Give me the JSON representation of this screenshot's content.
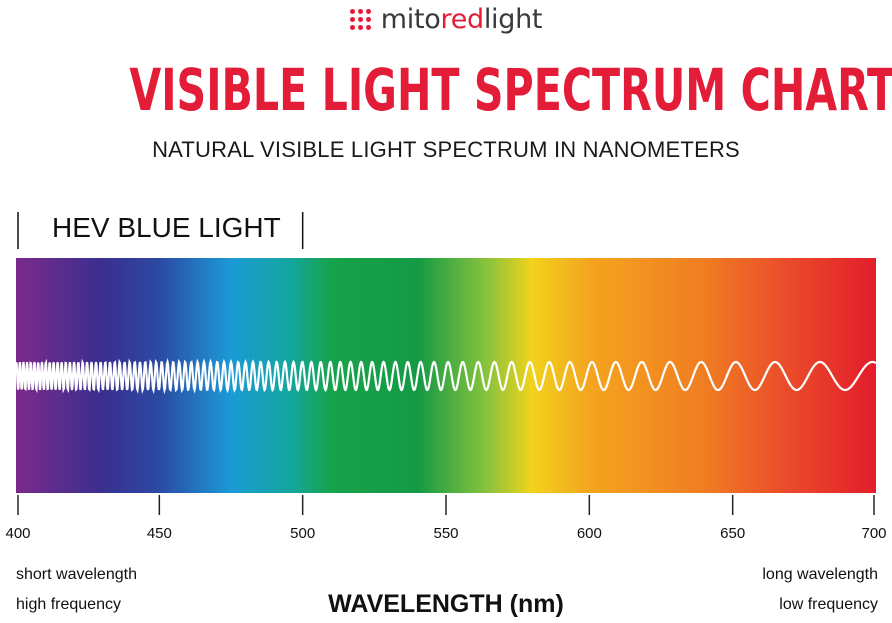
{
  "brand": {
    "name_prefix": "mito",
    "name_accent": "red",
    "name_suffix": "light",
    "accent_color": "#e31d37"
  },
  "header": {
    "title": "VISIBLE LIGHT SPECTRUM CHART",
    "subtitle": "NATURAL VISIBLE LIGHT SPECTRUM IN NANOMETERS"
  },
  "chart_data": {
    "type": "spectrum",
    "xlabel": "WAVELENGTH (nm)",
    "xlim": [
      400,
      700
    ],
    "ticks": [
      400,
      450,
      500,
      550,
      600,
      650,
      700
    ],
    "tick_labels": [
      "400",
      "450",
      "500",
      "550",
      "600",
      "650",
      "700"
    ],
    "region": {
      "label": "HEV BLUE LIGHT",
      "range": [
        400,
        500
      ]
    },
    "color_stops": [
      {
        "nm": 400,
        "color": "#7b2a8c"
      },
      {
        "nm": 430,
        "color": "#3a2f8f"
      },
      {
        "nm": 450,
        "color": "#2b4aa3"
      },
      {
        "nm": 475,
        "color": "#1b9ad6"
      },
      {
        "nm": 495,
        "color": "#14a6a0"
      },
      {
        "nm": 510,
        "color": "#16a34a"
      },
      {
        "nm": 540,
        "color": "#149a45"
      },
      {
        "nm": 565,
        "color": "#8cc43c"
      },
      {
        "nm": 580,
        "color": "#f2d21c"
      },
      {
        "nm": 600,
        "color": "#f4a51e"
      },
      {
        "nm": 640,
        "color": "#f07d22"
      },
      {
        "nm": 670,
        "color": "#ea4a2a"
      },
      {
        "nm": 700,
        "color": "#e31d2b"
      }
    ],
    "wave_color": "#ffffff",
    "annotations": {
      "left_top": "short wavelength",
      "left_bottom": "high frequency",
      "right_top": "long wavelength",
      "right_bottom": "low frequency"
    }
  }
}
